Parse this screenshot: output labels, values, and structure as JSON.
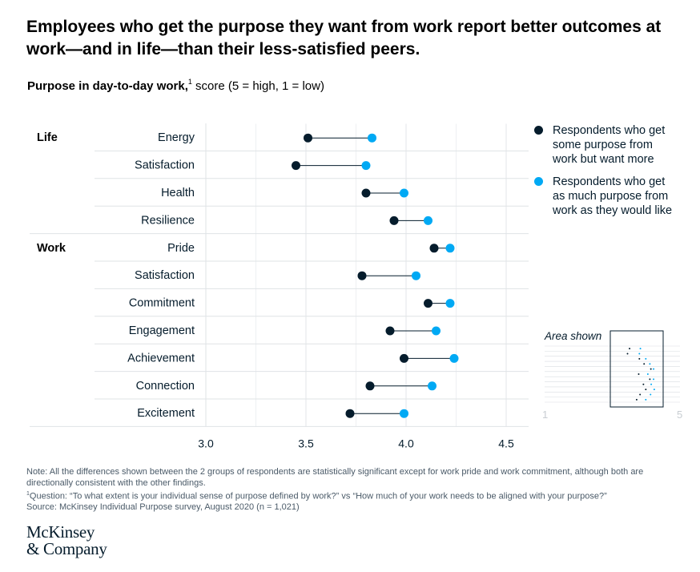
{
  "title": "Employees who get the purpose they want from work report better outcomes at work—and in life—than their less-satisfied peers.",
  "subtitle": {
    "bold": "Purpose in day-to-day work,",
    "footnote_mark": "1",
    "rest": " score (5 = high, 1 = low)"
  },
  "chart_data": {
    "type": "dumbbell",
    "xlim": [
      3.0,
      4.5
    ],
    "x_ticks": [
      "3.0",
      "3.5",
      "4.0",
      "4.5"
    ],
    "groups": [
      "Life",
      "Work"
    ],
    "categories": [
      {
        "group": "Life",
        "label": "Energy"
      },
      {
        "group": "Life",
        "label": "Satisfaction"
      },
      {
        "group": "Life",
        "label": "Health"
      },
      {
        "group": "Life",
        "label": "Resilience"
      },
      {
        "group": "Work",
        "label": "Pride"
      },
      {
        "group": "Work",
        "label": "Satisfaction"
      },
      {
        "group": "Work",
        "label": "Commitment"
      },
      {
        "group": "Work",
        "label": "Engagement"
      },
      {
        "group": "Work",
        "label": "Achievement"
      },
      {
        "group": "Work",
        "label": "Connection"
      },
      {
        "group": "Work",
        "label": "Excitement"
      }
    ],
    "series": [
      {
        "name": "Respondents who get some purpose from work but want more",
        "color": "#051c2c",
        "values": [
          3.51,
          3.45,
          3.8,
          3.94,
          4.14,
          3.78,
          4.11,
          3.92,
          3.99,
          3.82,
          3.72
        ]
      },
      {
        "name": "Respondents who get as much purpose from work as they would like",
        "color": "#00a9f4",
        "values": [
          3.83,
          3.8,
          3.99,
          4.11,
          4.22,
          4.05,
          4.22,
          4.15,
          4.24,
          4.13,
          3.99
        ]
      }
    ],
    "grid": true,
    "legend_position": "right"
  },
  "legend": {
    "items": [
      {
        "lines": [
          "Respondents who get",
          "some purpose from",
          "work but want more"
        ],
        "color": "#051c2c",
        "icon": "dark-dot"
      },
      {
        "lines": [
          "Respondents who get",
          "as much purpose from",
          "work as they would like"
        ],
        "color": "#00a9f4",
        "icon": "blue-dot"
      }
    ]
  },
  "inset": {
    "title": "Area shown",
    "min_label": "1",
    "max_label": "5"
  },
  "notes": {
    "line1": "Note: All the differences shown between the 2 groups of respondents are statistically significant except for work pride and work commitment, although both are directionally consistent with the other findings.",
    "footnote_mark": "1",
    "line2": "Question: “To what extent is your individual sense of purpose defined by work?” vs “How much of your work needs to be aligned with your purpose?”",
    "line3": "Source: McKinsey Individual Purpose survey, August 2020 (n = 1,021)"
  },
  "logo": {
    "line1": "McKinsey",
    "line2": "& Company"
  }
}
